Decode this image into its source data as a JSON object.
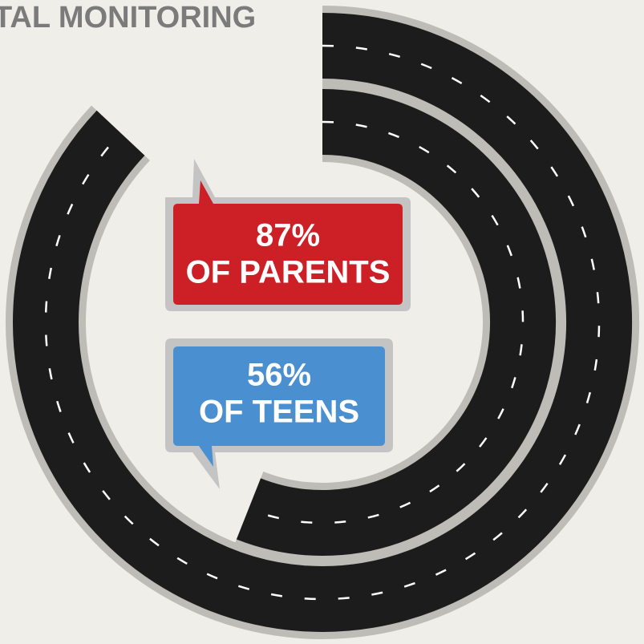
{
  "chart_data": {
    "type": "radial_bar",
    "title": "TAL MONITORING",
    "series": [
      {
        "name": "OF PARENTS",
        "color": "#cc1f26",
        "values": [
          87
        ],
        "value_labels": [
          "87%"
        ]
      },
      {
        "name": "OF TEENS",
        "color": "#4a8fd0",
        "values": [
          56
        ],
        "value_labels": [
          "56%"
        ]
      }
    ]
  }
}
